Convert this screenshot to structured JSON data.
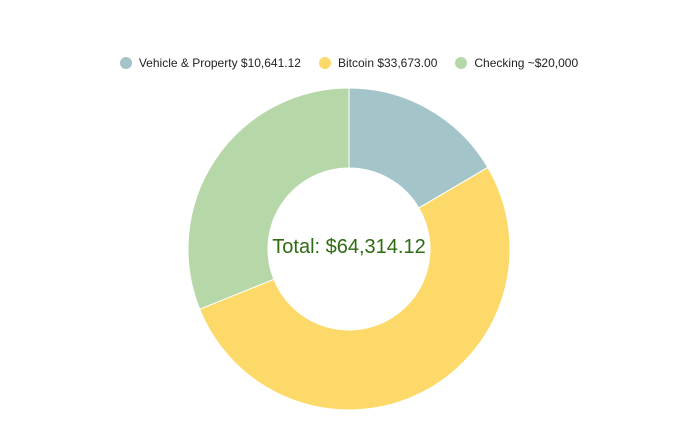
{
  "chart_data": {
    "type": "pie",
    "donut": true,
    "legend_position": "top",
    "center_text": "Total: $64,314.12",
    "center_text_color": "#2e6b12",
    "slices": [
      {
        "label": "Vehicle & Property $10,641.12",
        "value": 10641.12,
        "color": "#a3c4c8"
      },
      {
        "label": "Bitcoin $33,673.00",
        "value": 33673.0,
        "color": "#fdd969"
      },
      {
        "label": "Checking ~$20,000",
        "value": 20000,
        "color": "#b6d8a8"
      }
    ]
  }
}
